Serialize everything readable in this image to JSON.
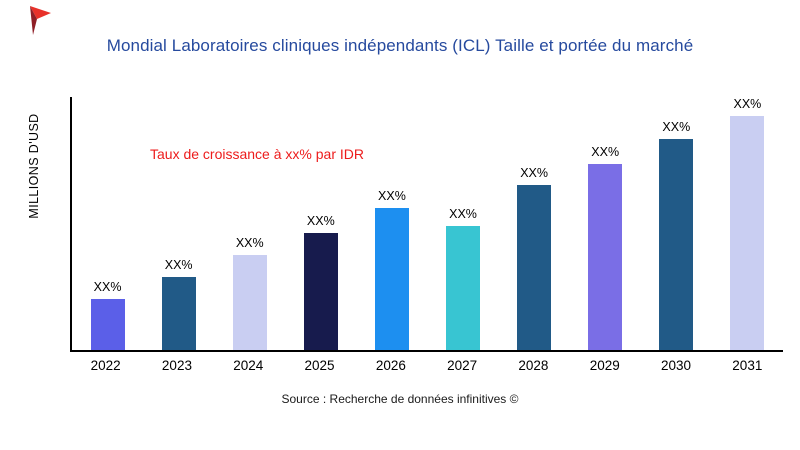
{
  "brand": {
    "logo_icon": "red-flag-logo",
    "logo_color_primary": "#e8312a",
    "logo_color_secondary": "#8f1f27"
  },
  "chart_data": {
    "type": "bar",
    "title": "Mondial Laboratoires cliniques indépendants (ICL) Taille et portée du marché",
    "title_color": "#264a9e",
    "ylabel": "MILLIONS D'USD",
    "xlabel": "",
    "annotation": "Taux de croissance à xx% par IDR",
    "annotation_color": "#ed1c1c",
    "source": "Source : Recherche de données infinitives ©",
    "categories": [
      "2022",
      "2023",
      "2024",
      "2025",
      "2026",
      "2027",
      "2028",
      "2029",
      "2030",
      "2031"
    ],
    "values": [
      50,
      72,
      94,
      116,
      140,
      123,
      163,
      184,
      209,
      233
    ],
    "bar_labels": [
      "XX%",
      "XX%",
      "XX%",
      "XX%",
      "XX%",
      "XX%",
      "XX%",
      "XX%",
      "XX%",
      "XX%"
    ],
    "bar_colors": [
      "#5b5fe8",
      "#215a87",
      "#c9cef2",
      "#171b4d",
      "#1d8ff0",
      "#38c5d2",
      "#215a87",
      "#7a6ee6",
      "#215a87",
      "#c9cef2"
    ],
    "ylim": [
      0,
      250
    ],
    "grid": false,
    "legend": null
  }
}
